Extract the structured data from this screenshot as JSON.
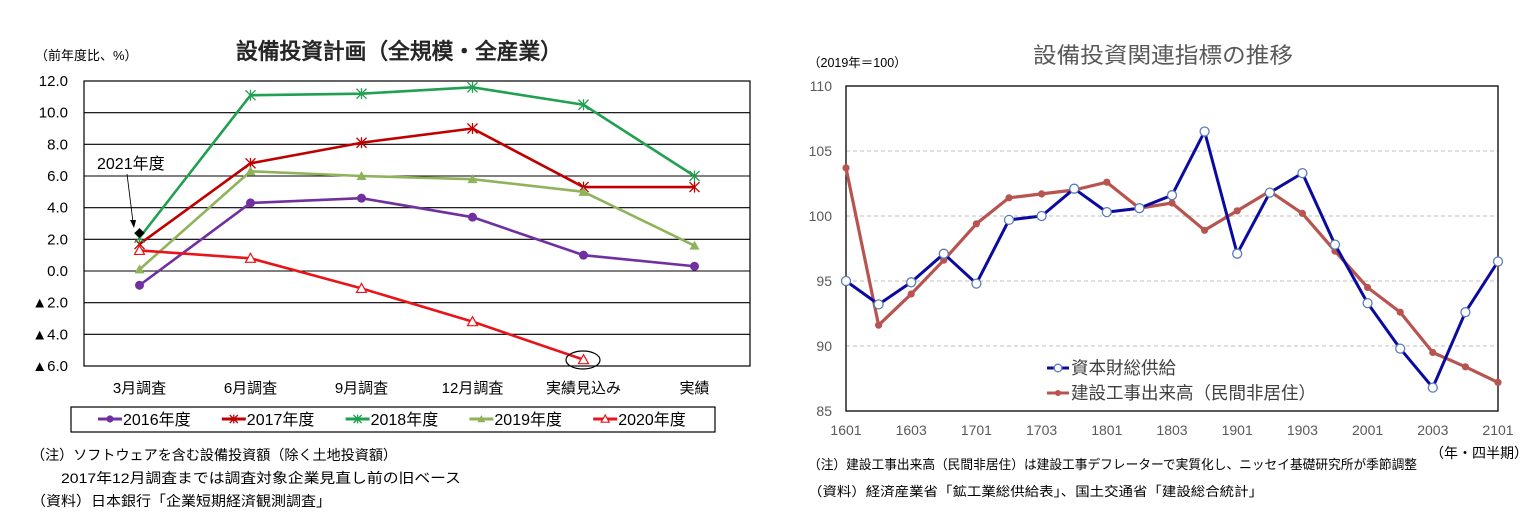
{
  "left_panel": {
    "notes": [
      "（注）ソフトウェアを含む設備投資額（除く土地投資額）",
      "2017年12月調査までは調査対象企業見直し前の旧ベース",
      "（資料）日本銀行「企業短期経済観測調査」"
    ]
  },
  "right_panel": {
    "notes": [
      "（注）建設工事出来高（民間非居住）は建設工事デフレーターで実質化し、ニッセイ基礎研究所が季節調整",
      "（資料）経済産業省「鉱工業総供給表」、国土交通省「建設総合統計」"
    ]
  },
  "chart_data": [
    {
      "type": "line",
      "title": "設備投資計画（全規模・全産業）",
      "ylabel": "（前年度比、%）",
      "xlabel": "",
      "ylim": [
        -6,
        12
      ],
      "yticks": [
        12,
        10,
        8,
        6,
        4,
        2,
        0,
        -2,
        -4,
        -6
      ],
      "yticklabels": [
        "12.0",
        "10.0",
        "8.0",
        "6.0",
        "4.0",
        "2.0",
        "0.0",
        "▲2.0",
        "▲4.0",
        "▲6.0"
      ],
      "grid": true,
      "legend_position": "bottom",
      "categories": [
        "3月調査",
        "6月調査",
        "9月調査",
        "12月調査",
        "実績見込み",
        "実績"
      ],
      "series": [
        {
          "name": "2016年度",
          "values": [
            -0.9,
            4.3,
            4.6,
            3.4,
            1.0,
            0.3
          ],
          "color": "#7030A0",
          "marker": "circle",
          "legend": true
        },
        {
          "name": "2017年度",
          "values": [
            1.7,
            6.8,
            8.1,
            9.0,
            5.3,
            5.3
          ],
          "color": "#C00000",
          "marker": "asterisk",
          "legend": true
        },
        {
          "name": "2018年度",
          "values": [
            2.1,
            11.1,
            11.2,
            11.6,
            10.5,
            6.0
          ],
          "color": "#20A050",
          "marker": "asterisk",
          "legend": true
        },
        {
          "name": "2019年度",
          "values": [
            0.1,
            6.3,
            6.0,
            5.8,
            5.0,
            1.6
          ],
          "color": "#8FB35A",
          "marker": "triangle",
          "legend": true
        },
        {
          "name": "2020年度",
          "values": [
            1.3,
            0.8,
            -1.1,
            -3.2,
            -5.6,
            null
          ],
          "color": "#E8141A",
          "marker": "open-triangle",
          "legend": true
        },
        {
          "name": "2021年度",
          "values": [
            2.4,
            null,
            null,
            null,
            null,
            null
          ],
          "color": "#000000",
          "marker": "diamond",
          "legend": false
        }
      ]
    },
    {
      "type": "line",
      "title": "設備投資関連指標の推移",
      "ylabel": "（2019年＝100）",
      "xlabel": "（年・四半期）",
      "ylim": [
        85,
        110
      ],
      "yticks": [
        110,
        105,
        100,
        95,
        90,
        85
      ],
      "yticklabels": [
        "110",
        "105",
        "100",
        "95",
        "90",
        "85"
      ],
      "grid": true,
      "legend_position": "bottom-center",
      "x": [
        "1601",
        "1602",
        "1603",
        "1604",
        "1701",
        "1702",
        "1703",
        "1704",
        "1801",
        "1802",
        "1803",
        "1804",
        "1901",
        "1902",
        "1903",
        "1904",
        "2001",
        "2002",
        "2003",
        "2004",
        "2101"
      ],
      "xticklabels": [
        "1601",
        "1603",
        "1701",
        "1703",
        "1801",
        "1803",
        "1901",
        "1903",
        "2001",
        "2003",
        "2101"
      ],
      "series": [
        {
          "name": "資本財総供給",
          "values": [
            95.0,
            93.2,
            94.9,
            97.1,
            94.8,
            99.7,
            100.0,
            102.1,
            100.3,
            100.6,
            101.6,
            106.5,
            97.1,
            101.8,
            103.3,
            97.8,
            93.3,
            89.8,
            86.8,
            92.6,
            96.5
          ],
          "color": "#0A0AA0",
          "marker": "open-circle",
          "marker_stroke": "#5B7DB5"
        },
        {
          "name": "建設工事出来高（民間非居住）",
          "values": [
            103.7,
            91.6,
            94.0,
            96.6,
            99.4,
            101.4,
            101.7,
            102.0,
            102.6,
            100.6,
            101.0,
            98.9,
            100.4,
            101.9,
            100.2,
            97.3,
            94.5,
            92.6,
            89.5,
            88.4,
            87.2
          ],
          "color": "#B85450",
          "marker": "dot"
        }
      ]
    }
  ]
}
